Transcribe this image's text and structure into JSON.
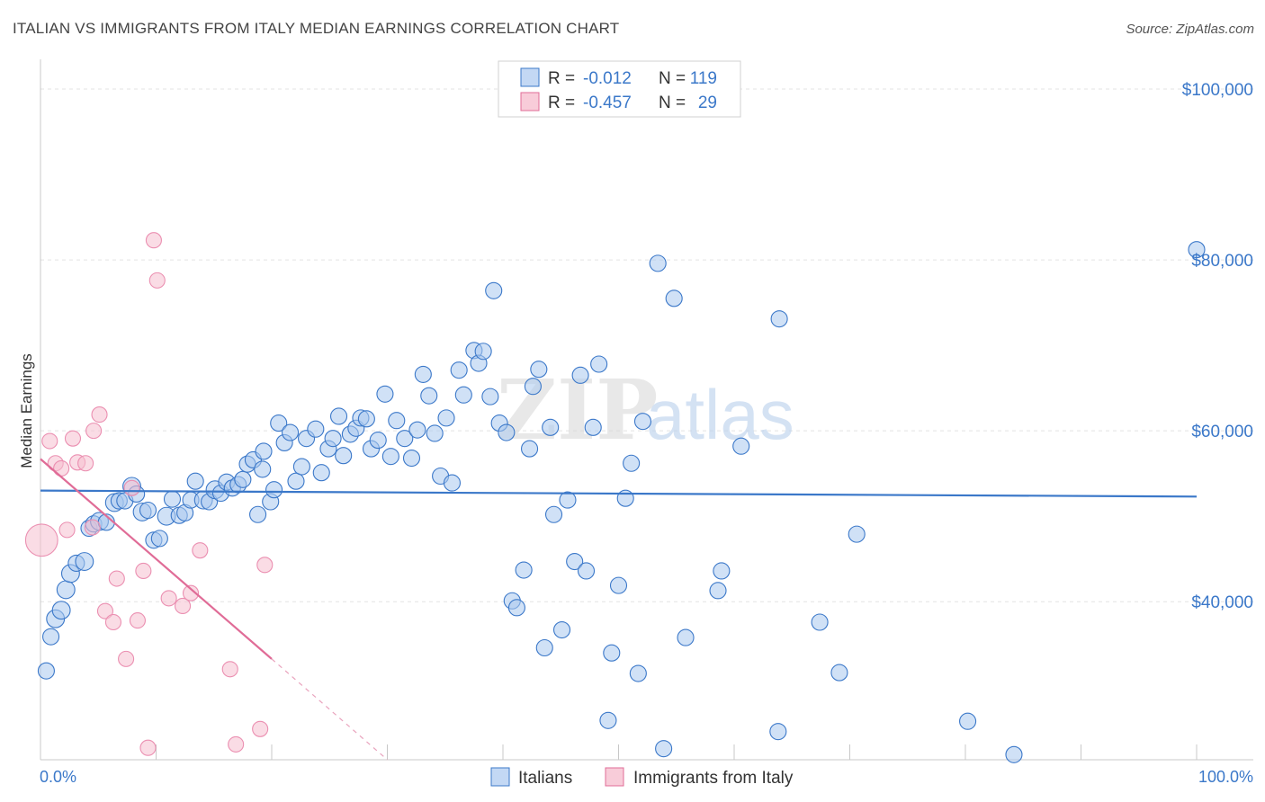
{
  "title": "ITALIAN VS IMMIGRANTS FROM ITALY MEDIAN EARNINGS CORRELATION CHART",
  "source": "Source: ZipAtlas.com",
  "watermark_zip": "ZIP",
  "watermark_atlas": "atlas",
  "colors": {
    "blue": "#3b78c9",
    "blue_fill": "#a9c8ef",
    "pink": "#e06c97",
    "pink_fill": "#f6bfd0",
    "grid": "#e3e3e3"
  },
  "chart_data": {
    "type": "scatter",
    "title": "ITALIAN VS IMMIGRANTS FROM ITALY MEDIAN EARNINGS CORRELATION CHART",
    "xlabel": "",
    "ylabel": "Median Earnings",
    "xlim": [
      0,
      100
    ],
    "ylim": [
      21500,
      102000
    ],
    "x_tick_labels": [
      "0.0%",
      "100.0%"
    ],
    "y_ticks": [
      {
        "value": 40000,
        "label": "$40,000"
      },
      {
        "value": 60000,
        "label": "$60,000"
      },
      {
        "value": 80000,
        "label": "$80,000"
      },
      {
        "value": 100000,
        "label": "$100,000"
      }
    ],
    "legend": [
      {
        "series": "Italians",
        "r_label": "R =",
        "r": "-0.012",
        "n_label": "N =",
        "n": "119"
      },
      {
        "series": "Immigrants from Italy",
        "r_label": "R =",
        "r": "-0.457",
        "n_label": "N =",
        "n": "29"
      }
    ],
    "series": [
      {
        "name": "Italians",
        "color": "#3b78c9",
        "trend": {
          "x": [
            0,
            100
          ],
          "y": [
            53000,
            52300
          ]
        },
        "points": [
          [
            0.5,
            31900
          ],
          [
            0.9,
            35900
          ],
          [
            1.3,
            38000
          ],
          [
            1.8,
            39000
          ],
          [
            2.2,
            41400
          ],
          [
            2.6,
            43300
          ],
          [
            3.1,
            44500
          ],
          [
            3.8,
            44700
          ],
          [
            4.2,
            48600
          ],
          [
            4.6,
            49100
          ],
          [
            5.1,
            49400
          ],
          [
            5.7,
            49300
          ],
          [
            6.4,
            51600
          ],
          [
            6.8,
            51800
          ],
          [
            7.3,
            51800
          ],
          [
            7.9,
            53500
          ],
          [
            8.3,
            52600
          ],
          [
            8.8,
            50500
          ],
          [
            9.3,
            50700
          ],
          [
            9.8,
            47200
          ],
          [
            10.3,
            47400
          ],
          [
            10.9,
            50000
          ],
          [
            11.4,
            52000
          ],
          [
            12.0,
            50100
          ],
          [
            12.5,
            50400
          ],
          [
            13.0,
            51900
          ],
          [
            13.4,
            54100
          ],
          [
            14.1,
            51900
          ],
          [
            14.6,
            51700
          ],
          [
            15.1,
            53100
          ],
          [
            15.6,
            52700
          ],
          [
            16.1,
            54000
          ],
          [
            16.6,
            53300
          ],
          [
            17.1,
            53700
          ],
          [
            17.5,
            54300
          ],
          [
            17.9,
            56100
          ],
          [
            18.4,
            56600
          ],
          [
            18.8,
            50200
          ],
          [
            19.3,
            57600
          ],
          [
            19.2,
            55500
          ],
          [
            19.9,
            51700
          ],
          [
            20.2,
            53100
          ],
          [
            20.6,
            60900
          ],
          [
            21.1,
            58600
          ],
          [
            21.6,
            59800
          ],
          [
            22.1,
            54100
          ],
          [
            22.6,
            55800
          ],
          [
            23.0,
            59100
          ],
          [
            23.8,
            60200
          ],
          [
            24.3,
            55100
          ],
          [
            24.9,
            57900
          ],
          [
            25.3,
            59100
          ],
          [
            25.8,
            61700
          ],
          [
            26.2,
            57100
          ],
          [
            26.8,
            59600
          ],
          [
            27.3,
            60300
          ],
          [
            27.7,
            61500
          ],
          [
            28.2,
            61400
          ],
          [
            28.6,
            57900
          ],
          [
            29.2,
            58900
          ],
          [
            29.8,
            64300
          ],
          [
            30.3,
            57000
          ],
          [
            30.8,
            61200
          ],
          [
            31.5,
            59100
          ],
          [
            32.1,
            56800
          ],
          [
            32.6,
            60100
          ],
          [
            33.1,
            66600
          ],
          [
            33.6,
            64100
          ],
          [
            34.1,
            59700
          ],
          [
            34.6,
            54700
          ],
          [
            35.1,
            61500
          ],
          [
            35.6,
            53900
          ],
          [
            36.2,
            67100
          ],
          [
            36.6,
            64200
          ],
          [
            37.5,
            69400
          ],
          [
            37.9,
            67900
          ],
          [
            38.3,
            69300
          ],
          [
            38.9,
            64000
          ],
          [
            39.2,
            76400
          ],
          [
            39.7,
            60900
          ],
          [
            40.3,
            59800
          ],
          [
            40.8,
            40100
          ],
          [
            41.2,
            39300
          ],
          [
            41.8,
            43700
          ],
          [
            42.3,
            57900
          ],
          [
            42.6,
            65200
          ],
          [
            43.1,
            67200
          ],
          [
            43.6,
            34600
          ],
          [
            44.1,
            60400
          ],
          [
            44.4,
            50200
          ],
          [
            45.1,
            36700
          ],
          [
            45.6,
            51900
          ],
          [
            46.2,
            44700
          ],
          [
            46.7,
            66500
          ],
          [
            47.2,
            43600
          ],
          [
            47.8,
            60400
          ],
          [
            48.3,
            67800
          ],
          [
            49.1,
            26100
          ],
          [
            49.4,
            34000
          ],
          [
            50.0,
            41900
          ],
          [
            50.6,
            52100
          ],
          [
            51.1,
            56200
          ],
          [
            51.7,
            31600
          ],
          [
            52.1,
            61100
          ],
          [
            53.4,
            79600
          ],
          [
            53.9,
            22800
          ],
          [
            54.8,
            75500
          ],
          [
            55.8,
            35800
          ],
          [
            58.6,
            41300
          ],
          [
            58.9,
            43600
          ],
          [
            60.6,
            58200
          ],
          [
            63.8,
            24800
          ],
          [
            63.9,
            73100
          ],
          [
            67.4,
            37600
          ],
          [
            70.6,
            47900
          ],
          [
            69.1,
            31700
          ],
          [
            80.2,
            26000
          ],
          [
            84.2,
            22100
          ],
          [
            100.0,
            81200
          ]
        ],
        "sizes": [
          1,
          1,
          1.1,
          1.1,
          1.1,
          1.1,
          1,
          1.1,
          1,
          1,
          1.1,
          1,
          1.1,
          1,
          1,
          1.1,
          1,
          1.1,
          1,
          1,
          1,
          1.1,
          1,
          1,
          1,
          1,
          1,
          1.1,
          1,
          1.1,
          1,
          1,
          1,
          1,
          1,
          1,
          1,
          1,
          1,
          1,
          1,
          1,
          1,
          1,
          1,
          1,
          1,
          1,
          1,
          1,
          1,
          1,
          1,
          1,
          1,
          1,
          1,
          1,
          1,
          1,
          1,
          1,
          1,
          1,
          1,
          1,
          1,
          1,
          1,
          1,
          1,
          1,
          1,
          1,
          1,
          1,
          1,
          1,
          1,
          1,
          1,
          1,
          1,
          1,
          1,
          1,
          1,
          1,
          1,
          1,
          1,
          1,
          1,
          1,
          1,
          1,
          1,
          1,
          1,
          1,
          1,
          1,
          1,
          1,
          1,
          1,
          1,
          1,
          1,
          1,
          1,
          1,
          1,
          1,
          1,
          1,
          1,
          1,
          1
        ]
      },
      {
        "name": "Immigrants from Italy",
        "color": "#e06c97",
        "trend": {
          "x": [
            0,
            20
          ],
          "y": [
            56700,
            33300
          ]
        },
        "trend_dashed": {
          "x": [
            20,
            30
          ],
          "y": [
            33300,
            21500
          ]
        },
        "points": [
          [
            0.1,
            47200
          ],
          [
            0.8,
            58800
          ],
          [
            1.3,
            56200
          ],
          [
            1.8,
            55600
          ],
          [
            2.3,
            48400
          ],
          [
            2.8,
            59100
          ],
          [
            3.2,
            56300
          ],
          [
            3.9,
            56200
          ],
          [
            4.5,
            48700
          ],
          [
            4.6,
            60000
          ],
          [
            5.1,
            61900
          ],
          [
            5.6,
            38900
          ],
          [
            6.3,
            37600
          ],
          [
            6.6,
            42700
          ],
          [
            7.4,
            33300
          ],
          [
            7.9,
            53300
          ],
          [
            8.4,
            37800
          ],
          [
            8.9,
            43600
          ],
          [
            9.3,
            22900
          ],
          [
            9.8,
            82300
          ],
          [
            10.1,
            77600
          ],
          [
            11.1,
            40400
          ],
          [
            12.3,
            39500
          ],
          [
            13.0,
            41000
          ],
          [
            13.8,
            46000
          ],
          [
            16.4,
            32100
          ],
          [
            16.9,
            23300
          ],
          [
            19.0,
            25100
          ],
          [
            19.4,
            44300
          ]
        ],
        "sizes": [
          2.1,
          1,
          1,
          1,
          1,
          1,
          1,
          1,
          1,
          1,
          1,
          1,
          1,
          1,
          1,
          1,
          1,
          1,
          1,
          1,
          1,
          1,
          1,
          1,
          1,
          1,
          1,
          1,
          1
        ]
      }
    ]
  }
}
